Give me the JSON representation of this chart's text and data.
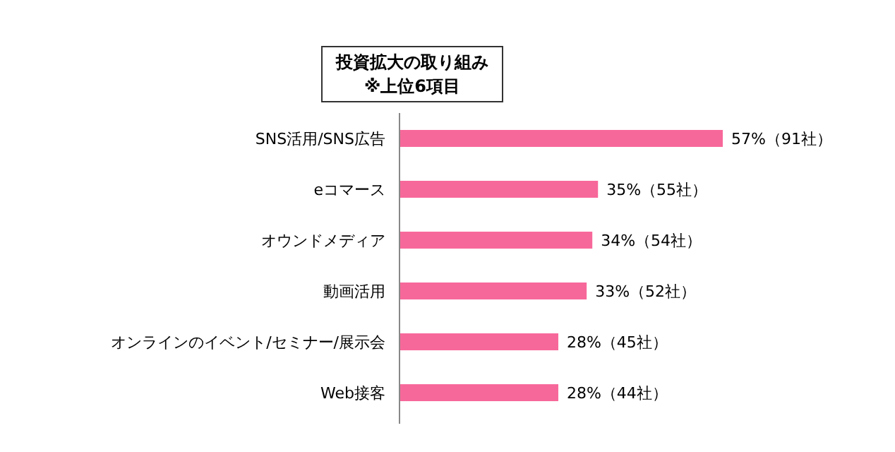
{
  "chart_data": {
    "type": "bar",
    "orientation": "horizontal",
    "title": "投資拡大の取り組み",
    "subtitle": "※上位6項目",
    "categories": [
      "SNS活用/SNS広告",
      "eコマース",
      "オウンドメディア",
      "動画活用",
      "オンラインのイベント/セミナー/展示会",
      "Web接客"
    ],
    "values": [
      57,
      35,
      34,
      33,
      28,
      28
    ],
    "value_labels": [
      "57%（91社）",
      "35%（55社）",
      "34%（54社）",
      "33%（52社）",
      "28%（45社）",
      "28%（44社）"
    ],
    "color": "#f7689a"
  }
}
